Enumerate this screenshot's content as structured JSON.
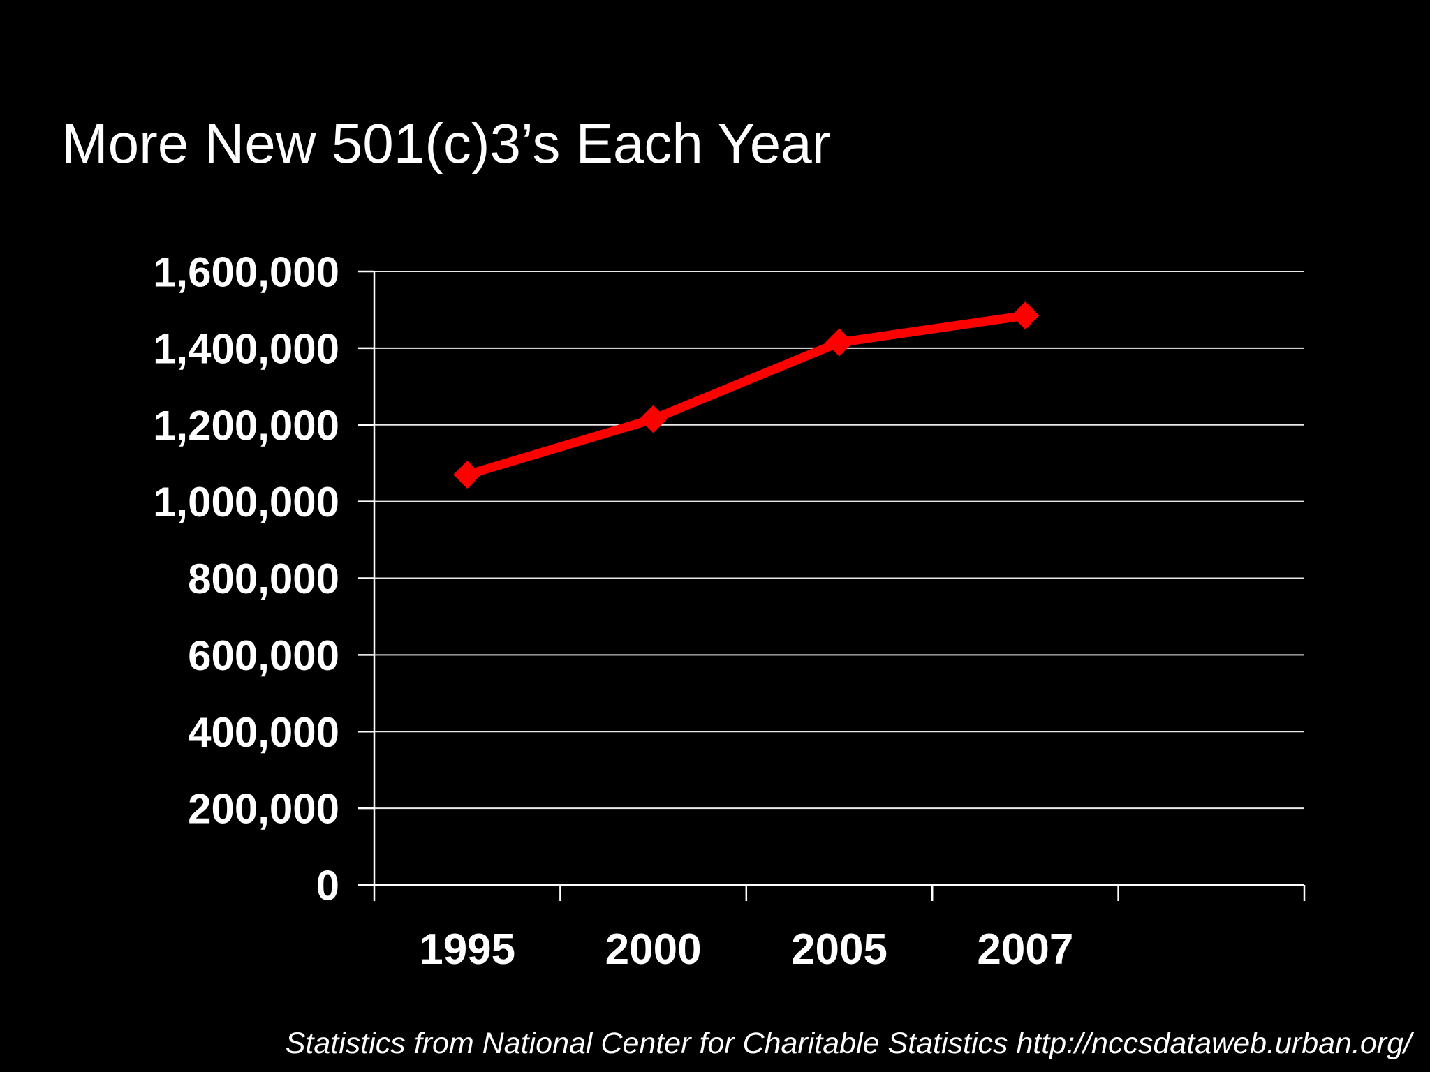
{
  "title": "More New 501(c)3’s Each Year",
  "source_note": "Statistics from National Center for Charitable Statistics http://nccsdataweb.urban.org/",
  "colors": {
    "background": "#000000",
    "text": "#ffffff",
    "line": "#ff0000",
    "gridline": "#e8e8e8",
    "axis": "#ffffff"
  },
  "chart_data": {
    "type": "line",
    "title": "More New 501(c)3’s Each Year",
    "categories": [
      "1995",
      "2000",
      "2005",
      "2007"
    ],
    "values": [
      1070000,
      1215000,
      1415000,
      1485000
    ],
    "xlabel": "",
    "ylabel": "",
    "ylim": [
      0,
      1600000
    ],
    "ytick_step": 200000,
    "ytick_labels": [
      "0",
      "200,000",
      "400,000",
      "600,000",
      "800,000",
      "1,000,000",
      "1,200,000",
      "1,400,000",
      "1,600,000"
    ],
    "grid": true,
    "legend": false,
    "marker": "diamond",
    "category_slots": 5,
    "line_color": "#ff0000"
  }
}
